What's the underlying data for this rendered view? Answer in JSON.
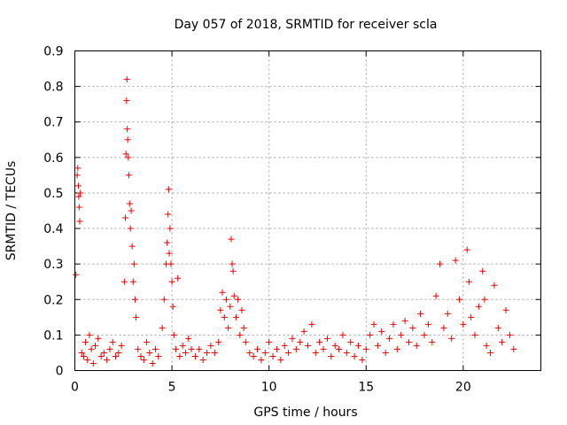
{
  "chart_data": {
    "type": "scatter",
    "title": "Day 057 of 2018, SRMTID for receiver scla",
    "xlabel": "GPS time / hours",
    "ylabel": "SRMTID / TECUs",
    "xlim": [
      0,
      24
    ],
    "ylim": [
      0,
      0.9
    ],
    "x_ticks": [
      0,
      5,
      10,
      15,
      20
    ],
    "x_tick_labels": [
      "0",
      "5",
      "10",
      "15",
      "20"
    ],
    "y_ticks": [
      0,
      0.1,
      0.2,
      0.3,
      0.4,
      0.5,
      0.6,
      0.7,
      0.8,
      0.9
    ],
    "y_tick_labels": [
      "0",
      "0.1",
      "0.2",
      "0.3",
      "0.4",
      "0.5",
      "0.6",
      "0.7",
      "0.8",
      "0.9"
    ],
    "grid": true,
    "marker": "plus",
    "marker_color": "#ee0000",
    "series": [
      {
        "name": "SRMTID",
        "points": [
          [
            0.05,
            0.27
          ],
          [
            0.12,
            0.55
          ],
          [
            0.15,
            0.57
          ],
          [
            0.18,
            0.52
          ],
          [
            0.2,
            0.49
          ],
          [
            0.22,
            0.46
          ],
          [
            0.25,
            0.42
          ],
          [
            0.28,
            0.5
          ],
          [
            0.35,
            0.05
          ],
          [
            0.45,
            0.04
          ],
          [
            0.55,
            0.08
          ],
          [
            0.65,
            0.03
          ],
          [
            0.75,
            0.1
          ],
          [
            0.85,
            0.06
          ],
          [
            0.95,
            0.02
          ],
          [
            1.05,
            0.07
          ],
          [
            1.2,
            0.09
          ],
          [
            1.35,
            0.04
          ],
          [
            1.5,
            0.05
          ],
          [
            1.65,
            0.03
          ],
          [
            1.8,
            0.06
          ],
          [
            1.95,
            0.08
          ],
          [
            2.1,
            0.04
          ],
          [
            2.25,
            0.05
          ],
          [
            2.4,
            0.07
          ],
          [
            2.55,
            0.25
          ],
          [
            2.6,
            0.43
          ],
          [
            2.63,
            0.61
          ],
          [
            2.66,
            0.76
          ],
          [
            2.68,
            0.82
          ],
          [
            2.7,
            0.68
          ],
          [
            2.72,
            0.65
          ],
          [
            2.75,
            0.6
          ],
          [
            2.78,
            0.55
          ],
          [
            2.82,
            0.47
          ],
          [
            2.86,
            0.4
          ],
          [
            2.9,
            0.45
          ],
          [
            2.95,
            0.35
          ],
          [
            3.0,
            0.25
          ],
          [
            3.05,
            0.3
          ],
          [
            3.1,
            0.2
          ],
          [
            3.15,
            0.15
          ],
          [
            3.25,
            0.06
          ],
          [
            3.4,
            0.04
          ],
          [
            3.55,
            0.03
          ],
          [
            3.7,
            0.08
          ],
          [
            3.85,
            0.05
          ],
          [
            4.0,
            0.02
          ],
          [
            4.15,
            0.06
          ],
          [
            4.3,
            0.04
          ],
          [
            4.5,
            0.12
          ],
          [
            4.6,
            0.2
          ],
          [
            4.7,
            0.3
          ],
          [
            4.75,
            0.36
          ],
          [
            4.8,
            0.44
          ],
          [
            4.83,
            0.51
          ],
          [
            4.86,
            0.33
          ],
          [
            4.9,
            0.4
          ],
          [
            4.95,
            0.3
          ],
          [
            5.0,
            0.25
          ],
          [
            5.05,
            0.18
          ],
          [
            5.1,
            0.1
          ],
          [
            5.2,
            0.06
          ],
          [
            5.3,
            0.26
          ],
          [
            5.4,
            0.04
          ],
          [
            5.55,
            0.07
          ],
          [
            5.7,
            0.05
          ],
          [
            5.85,
            0.09
          ],
          [
            6.0,
            0.06
          ],
          [
            6.2,
            0.04
          ],
          [
            6.4,
            0.06
          ],
          [
            6.6,
            0.03
          ],
          [
            6.8,
            0.05
          ],
          [
            7.0,
            0.07
          ],
          [
            7.2,
            0.05
          ],
          [
            7.4,
            0.08
          ],
          [
            7.5,
            0.17
          ],
          [
            7.6,
            0.22
          ],
          [
            7.7,
            0.15
          ],
          [
            7.8,
            0.2
          ],
          [
            7.9,
            0.12
          ],
          [
            8.0,
            0.18
          ],
          [
            8.05,
            0.37
          ],
          [
            8.1,
            0.3
          ],
          [
            8.15,
            0.28
          ],
          [
            8.2,
            0.21
          ],
          [
            8.3,
            0.15
          ],
          [
            8.4,
            0.2
          ],
          [
            8.5,
            0.1
          ],
          [
            8.6,
            0.17
          ],
          [
            8.7,
            0.12
          ],
          [
            8.8,
            0.08
          ],
          [
            9.0,
            0.05
          ],
          [
            9.2,
            0.04
          ],
          [
            9.4,
            0.06
          ],
          [
            9.6,
            0.03
          ],
          [
            9.8,
            0.05
          ],
          [
            10.0,
            0.08
          ],
          [
            10.2,
            0.04
          ],
          [
            10.4,
            0.06
          ],
          [
            10.6,
            0.03
          ],
          [
            10.8,
            0.07
          ],
          [
            11.0,
            0.05
          ],
          [
            11.2,
            0.09
          ],
          [
            11.4,
            0.06
          ],
          [
            11.6,
            0.08
          ],
          [
            11.8,
            0.11
          ],
          [
            12.0,
            0.07
          ],
          [
            12.2,
            0.13
          ],
          [
            12.4,
            0.05
          ],
          [
            12.6,
            0.08
          ],
          [
            12.8,
            0.06
          ],
          [
            13.0,
            0.09
          ],
          [
            13.2,
            0.04
          ],
          [
            13.4,
            0.07
          ],
          [
            13.6,
            0.06
          ],
          [
            13.8,
            0.1
          ],
          [
            14.0,
            0.05
          ],
          [
            14.2,
            0.08
          ],
          [
            14.4,
            0.04
          ],
          [
            14.6,
            0.07
          ],
          [
            14.8,
            0.03
          ],
          [
            15.0,
            0.06
          ],
          [
            15.2,
            0.1
          ],
          [
            15.4,
            0.13
          ],
          [
            15.6,
            0.07
          ],
          [
            15.8,
            0.11
          ],
          [
            16.0,
            0.05
          ],
          [
            16.2,
            0.09
          ],
          [
            16.4,
            0.13
          ],
          [
            16.6,
            0.06
          ],
          [
            16.8,
            0.1
          ],
          [
            17.0,
            0.14
          ],
          [
            17.2,
            0.08
          ],
          [
            17.4,
            0.12
          ],
          [
            17.6,
            0.07
          ],
          [
            17.8,
            0.16
          ],
          [
            18.0,
            0.1
          ],
          [
            18.2,
            0.13
          ],
          [
            18.4,
            0.08
          ],
          [
            18.6,
            0.21
          ],
          [
            18.8,
            0.3
          ],
          [
            19.0,
            0.12
          ],
          [
            19.2,
            0.16
          ],
          [
            19.4,
            0.09
          ],
          [
            19.6,
            0.31
          ],
          [
            19.8,
            0.2
          ],
          [
            20.0,
            0.13
          ],
          [
            20.2,
            0.34
          ],
          [
            20.3,
            0.25
          ],
          [
            20.4,
            0.15
          ],
          [
            20.6,
            0.1
          ],
          [
            20.8,
            0.18
          ],
          [
            21.0,
            0.28
          ],
          [
            21.1,
            0.2
          ],
          [
            21.2,
            0.07
          ],
          [
            21.4,
            0.05
          ],
          [
            21.6,
            0.24
          ],
          [
            21.8,
            0.12
          ],
          [
            22.0,
            0.08
          ],
          [
            22.2,
            0.17
          ],
          [
            22.4,
            0.1
          ],
          [
            22.6,
            0.06
          ]
        ]
      }
    ]
  }
}
